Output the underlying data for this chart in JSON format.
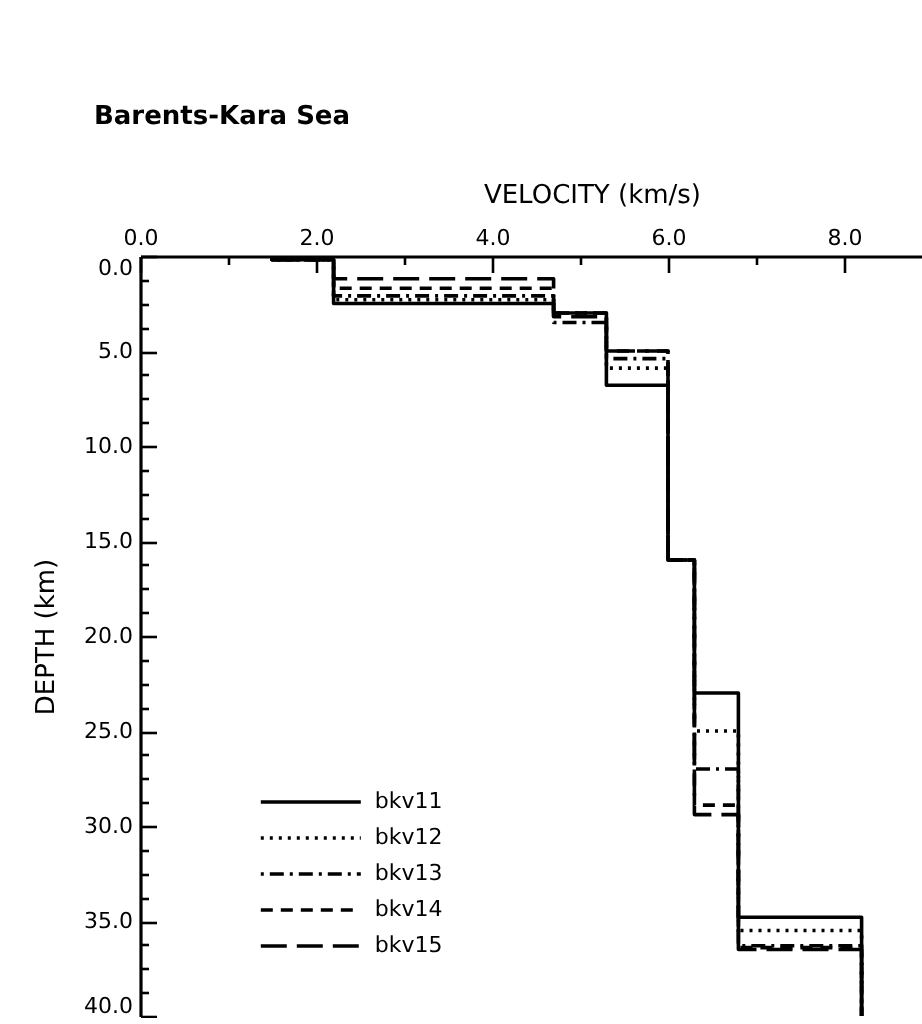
{
  "chart_data": {
    "type": "line",
    "title": "Barents-Kara Sea",
    "xlabel": "VELOCITY (km/s)",
    "ylabel": "DEPTH (km)",
    "xlim": [
      0,
      9
    ],
    "xticks": [
      {
        "value": 0,
        "label": "0.0"
      },
      {
        "value": 1,
        "label": null
      },
      {
        "value": 2,
        "label": "2.0"
      },
      {
        "value": 3,
        "label": null
      },
      {
        "value": 4,
        "label": "4.0"
      },
      {
        "value": 5,
        "label": null
      },
      {
        "value": 6,
        "label": "6.0"
      },
      {
        "value": 7,
        "label": null
      },
      {
        "value": 8,
        "label": "8.0"
      }
    ],
    "ylim": [
      40,
      0
    ],
    "yticks": [
      {
        "value": 0,
        "label": "0.0"
      },
      {
        "value": 1.25,
        "label": null
      },
      {
        "value": 2.5,
        "label": null
      },
      {
        "value": 3.75,
        "label": null
      },
      {
        "value": 5,
        "label": "5.0"
      },
      {
        "value": 6.25,
        "label": null
      },
      {
        "value": 7.5,
        "label": null
      },
      {
        "value": 8.75,
        "label": null
      },
      {
        "value": 10,
        "label": "10.0"
      },
      {
        "value": 11.25,
        "label": null
      },
      {
        "value": 12.5,
        "label": null
      },
      {
        "value": 13.75,
        "label": null
      },
      {
        "value": 15,
        "label": "15.0"
      },
      {
        "value": 16.25,
        "label": null
      },
      {
        "value": 17.5,
        "label": null
      },
      {
        "value": 18.75,
        "label": null
      },
      {
        "value": 20,
        "label": "20.0"
      },
      {
        "value": 21.25,
        "label": null
      },
      {
        "value": 22.5,
        "label": null
      },
      {
        "value": 23.75,
        "label": null
      },
      {
        "value": 25,
        "label": "25.0"
      },
      {
        "value": 26.25,
        "label": null
      },
      {
        "value": 27.5,
        "label": null
      },
      {
        "value": 28.75,
        "label": null
      },
      {
        "value": 30,
        "label": "30.0"
      },
      {
        "value": 31.25,
        "label": null
      },
      {
        "value": 32.5,
        "label": null
      },
      {
        "value": 33.75,
        "label": null
      },
      {
        "value": 35,
        "label": "35.0"
      },
      {
        "value": 36.25,
        "label": null
      },
      {
        "value": 37.5,
        "label": null
      },
      {
        "value": 38.75,
        "label": null
      },
      {
        "value": 40,
        "label": "40.0"
      }
    ],
    "legend": "bottom left",
    "series": [
      {
        "name": "bkv11",
        "color": "#000000",
        "line_style": "solid",
        "x": [
          1.5,
          1.5,
          2.2,
          2.2,
          4.7,
          4.7,
          5.3,
          5.3,
          6.0,
          6.0,
          6.3,
          6.3,
          6.8,
          6.8,
          8.2,
          8.2
        ],
        "values": [
          0,
          0.2,
          0.2,
          2.5,
          2.5,
          3.0,
          3.0,
          6.8,
          6.8,
          16.0,
          16.0,
          23.0,
          23.0,
          34.8,
          34.8,
          40
        ]
      },
      {
        "name": "bkv12",
        "color": "#000000",
        "line_style": "dotted",
        "x": [
          1.5,
          1.5,
          2.2,
          2.2,
          4.7,
          4.7,
          5.3,
          5.3,
          6.0,
          6.0,
          6.3,
          6.3,
          6.8,
          6.8,
          8.2,
          8.2
        ],
        "values": [
          0,
          0.2,
          0.2,
          2.3,
          2.3,
          3.0,
          3.0,
          5.9,
          5.9,
          16.0,
          16.0,
          25.0,
          25.0,
          35.5,
          35.5,
          40
        ]
      },
      {
        "name": "bkv13",
        "color": "#000000",
        "line_style": "dashdot",
        "x": [
          1.5,
          1.5,
          2.2,
          2.2,
          4.7,
          4.7,
          5.3,
          5.3,
          6.0,
          6.0,
          6.3,
          6.3,
          6.8,
          6.8,
          8.2,
          8.2
        ],
        "values": [
          0,
          0.2,
          0.2,
          2.1,
          2.1,
          3.5,
          3.5,
          5.4,
          5.4,
          16.0,
          16.0,
          27.0,
          27.0,
          36.3,
          36.3,
          40
        ]
      },
      {
        "name": "bkv14",
        "color": "#000000",
        "line_style": "dashed",
        "x": [
          1.5,
          1.5,
          2.2,
          2.2,
          4.7,
          4.7,
          5.3,
          5.3,
          6.0,
          6.0,
          6.3,
          6.3,
          6.8,
          6.8,
          8.2,
          8.2
        ],
        "values": [
          0,
          0.2,
          0.2,
          1.7,
          1.7,
          3.0,
          3.0,
          5.0,
          5.0,
          16.0,
          16.0,
          28.9,
          28.9,
          36.4,
          36.4,
          40
        ]
      },
      {
        "name": "bkv15",
        "color": "#000000",
        "line_style": "longdash",
        "x": [
          1.5,
          1.5,
          2.2,
          2.2,
          4.7,
          4.7,
          5.3,
          5.3,
          6.0,
          6.0,
          6.3,
          6.3,
          6.8,
          6.8,
          8.2,
          8.2
        ],
        "values": [
          0,
          0.2,
          0.2,
          1.2,
          1.2,
          3.2,
          3.2,
          5.0,
          5.0,
          16.0,
          16.0,
          29.4,
          29.4,
          36.5,
          36.5,
          40
        ]
      }
    ]
  }
}
